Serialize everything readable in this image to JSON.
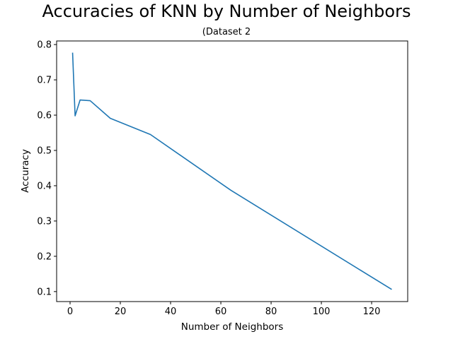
{
  "chart_data": {
    "type": "line",
    "title": "Accuracies of KNN by Number of Neighbors",
    "subtitle": "(Dataset 2",
    "xlabel": "Number of Neighbors",
    "ylabel": "Accuracy",
    "xlim": [
      -5.35,
      134.35
    ],
    "ylim": [
      0.0717,
      0.8102
    ],
    "xticks": [
      0,
      20,
      40,
      60,
      80,
      100,
      120
    ],
    "yticks": [
      0.1,
      0.2,
      0.3,
      0.4,
      0.5,
      0.6,
      0.7,
      0.8
    ],
    "grid": false,
    "series": [
      {
        "color": "#1f77b4",
        "x": [
          1,
          2,
          4,
          8,
          16,
          32,
          64,
          128
        ],
        "y": [
          0.777,
          0.598,
          0.643,
          0.641,
          0.591,
          0.545,
          0.387,
          0.106
        ]
      }
    ]
  }
}
